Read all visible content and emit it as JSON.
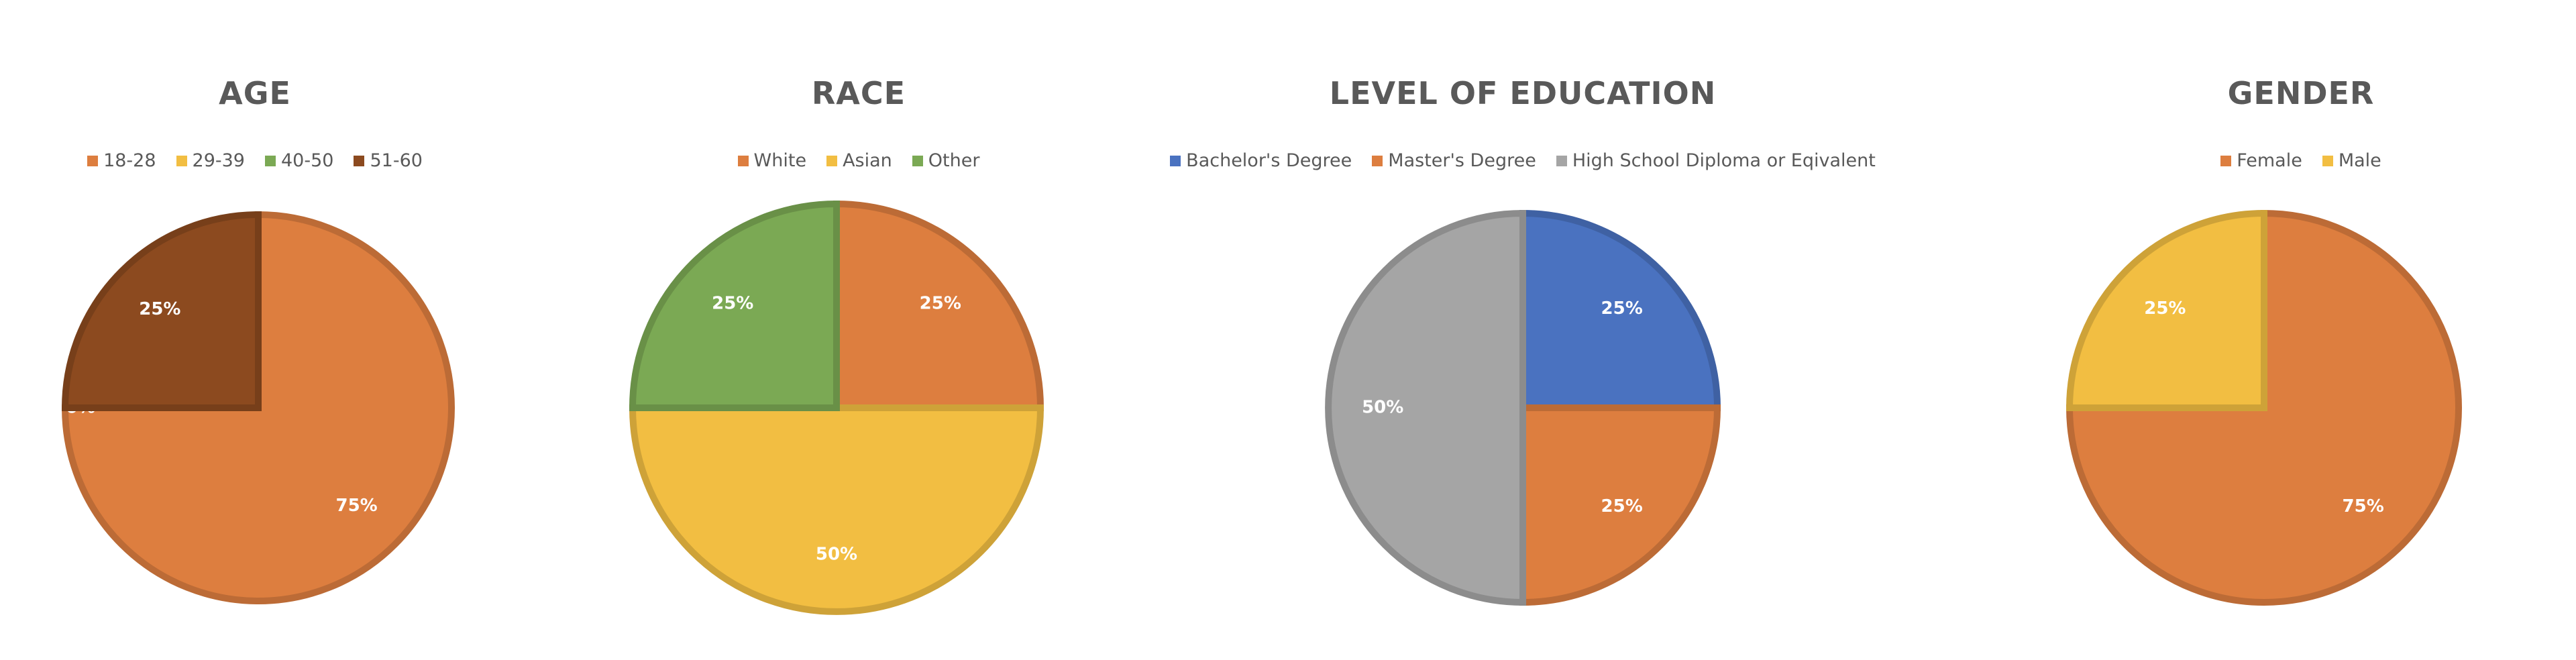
{
  "chart_data": [
    {
      "type": "pie",
      "title": "AGE",
      "categories": [
        "18-28",
        "29-39",
        "40-50",
        "51-60"
      ],
      "values": [
        75,
        0,
        0,
        25
      ],
      "data_labels": [
        "75%",
        "",
        "0%",
        "25%"
      ],
      "colors": [
        "#DD7E3F",
        "#F2BE42",
        "#7BA954",
        "#8C4A1F"
      ],
      "legend_position": "top"
    },
    {
      "type": "pie",
      "title": "RACE",
      "categories": [
        "White",
        "Asian",
        "Other"
      ],
      "values": [
        25,
        50,
        25
      ],
      "data_labels": [
        "25%",
        "50%",
        "25%"
      ],
      "colors": [
        "#DD7E3F",
        "#F2BE42",
        "#7BA954"
      ],
      "legend_position": "top"
    },
    {
      "type": "pie",
      "title": "LEVEL OF EDUCATION",
      "categories": [
        "Bachelor's Degree",
        "Master's Degree",
        "High School Diploma or Eqivalent"
      ],
      "values": [
        25,
        25,
        50
      ],
      "data_labels": [
        "25%",
        "25%",
        "50%"
      ],
      "colors": [
        "#4A72C0",
        "#DD7E3F",
        "#A5A5A5"
      ],
      "legend_position": "top"
    },
    {
      "type": "pie",
      "title": "GENDER",
      "categories": [
        "Female",
        "Male"
      ],
      "values": [
        75,
        25
      ],
      "data_labels": [
        "75%",
        "25%"
      ],
      "colors": [
        "#DD7E3F",
        "#F2BE42"
      ],
      "legend_position": "top"
    }
  ]
}
